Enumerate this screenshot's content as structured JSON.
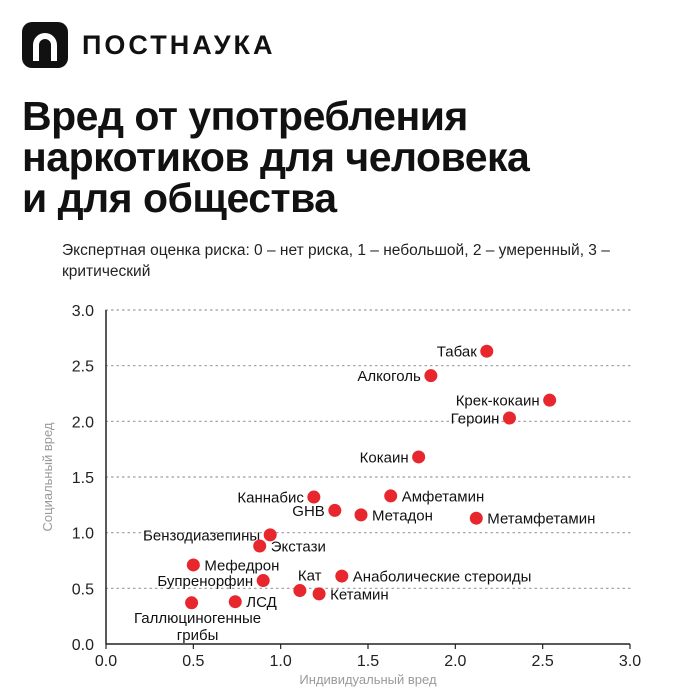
{
  "brand": {
    "name": "ПОСТНАУКА"
  },
  "header": {
    "title": "Вред от употребления\nнаркотиков для человека\nи для общества",
    "subtitle": "Экспертная оценка риска: 0 – нет риска, 1 – небольшой, 2 – умеренный, 3 – критический"
  },
  "colors": {
    "point": "#e8262d",
    "grid": "#9a9a9a",
    "axis": "#222222"
  },
  "chart_data": {
    "type": "scatter",
    "xlabel": "Индивидуальный вред",
    "ylabel": "Социальный вред",
    "xlim": [
      0,
      3
    ],
    "ylim": [
      0,
      3
    ],
    "xticks": [
      "0.0",
      "0.5",
      "1.0",
      "1.5",
      "2.0",
      "2.5",
      "3.0"
    ],
    "yticks": [
      "0.0",
      "0.5",
      "1.0",
      "1.5",
      "2.0",
      "2.5",
      "3.0"
    ],
    "grid": "horizontal dotted",
    "points": [
      {
        "label": "Табак",
        "x": 2.18,
        "y": 2.63,
        "side": "left"
      },
      {
        "label": "Алкоголь",
        "x": 1.86,
        "y": 2.41,
        "side": "left"
      },
      {
        "label": "Крек-кокаин",
        "x": 2.54,
        "y": 2.19,
        "side": "left"
      },
      {
        "label": "Героин",
        "x": 2.31,
        "y": 2.03,
        "side": "left"
      },
      {
        "label": "Кокаин",
        "x": 1.79,
        "y": 1.68,
        "side": "left"
      },
      {
        "label": "Каннабис",
        "x": 1.19,
        "y": 1.32,
        "side": "left"
      },
      {
        "label": "Амфетамин",
        "x": 1.63,
        "y": 1.33,
        "side": "right"
      },
      {
        "label": "GHB",
        "x": 1.31,
        "y": 1.2,
        "side": "left"
      },
      {
        "label": "Метадон",
        "x": 1.46,
        "y": 1.16,
        "side": "right"
      },
      {
        "label": "Метамфетамин",
        "x": 2.12,
        "y": 1.13,
        "side": "right"
      },
      {
        "label": "Бензодиазепины",
        "x": 0.94,
        "y": 0.98,
        "side": "left"
      },
      {
        "label": "Экстази",
        "x": 0.88,
        "y": 0.88,
        "side": "right"
      },
      {
        "label": "Мефедрон",
        "x": 0.5,
        "y": 0.71,
        "side": "right"
      },
      {
        "label": "Бупренорфин",
        "x": 0.9,
        "y": 0.57,
        "side": "left"
      },
      {
        "label": "Кат",
        "x": 1.11,
        "y": 0.48,
        "side": "above"
      },
      {
        "label": "Анаболические стероиды",
        "x": 1.35,
        "y": 0.61,
        "side": "right"
      },
      {
        "label": "Кетамин",
        "x": 1.22,
        "y": 0.45,
        "side": "right"
      },
      {
        "label": "Галлюциногенные\nгрибы",
        "x": 0.49,
        "y": 0.37,
        "side": "below"
      },
      {
        "label": "ЛСД",
        "x": 0.74,
        "y": 0.38,
        "side": "right"
      }
    ]
  }
}
